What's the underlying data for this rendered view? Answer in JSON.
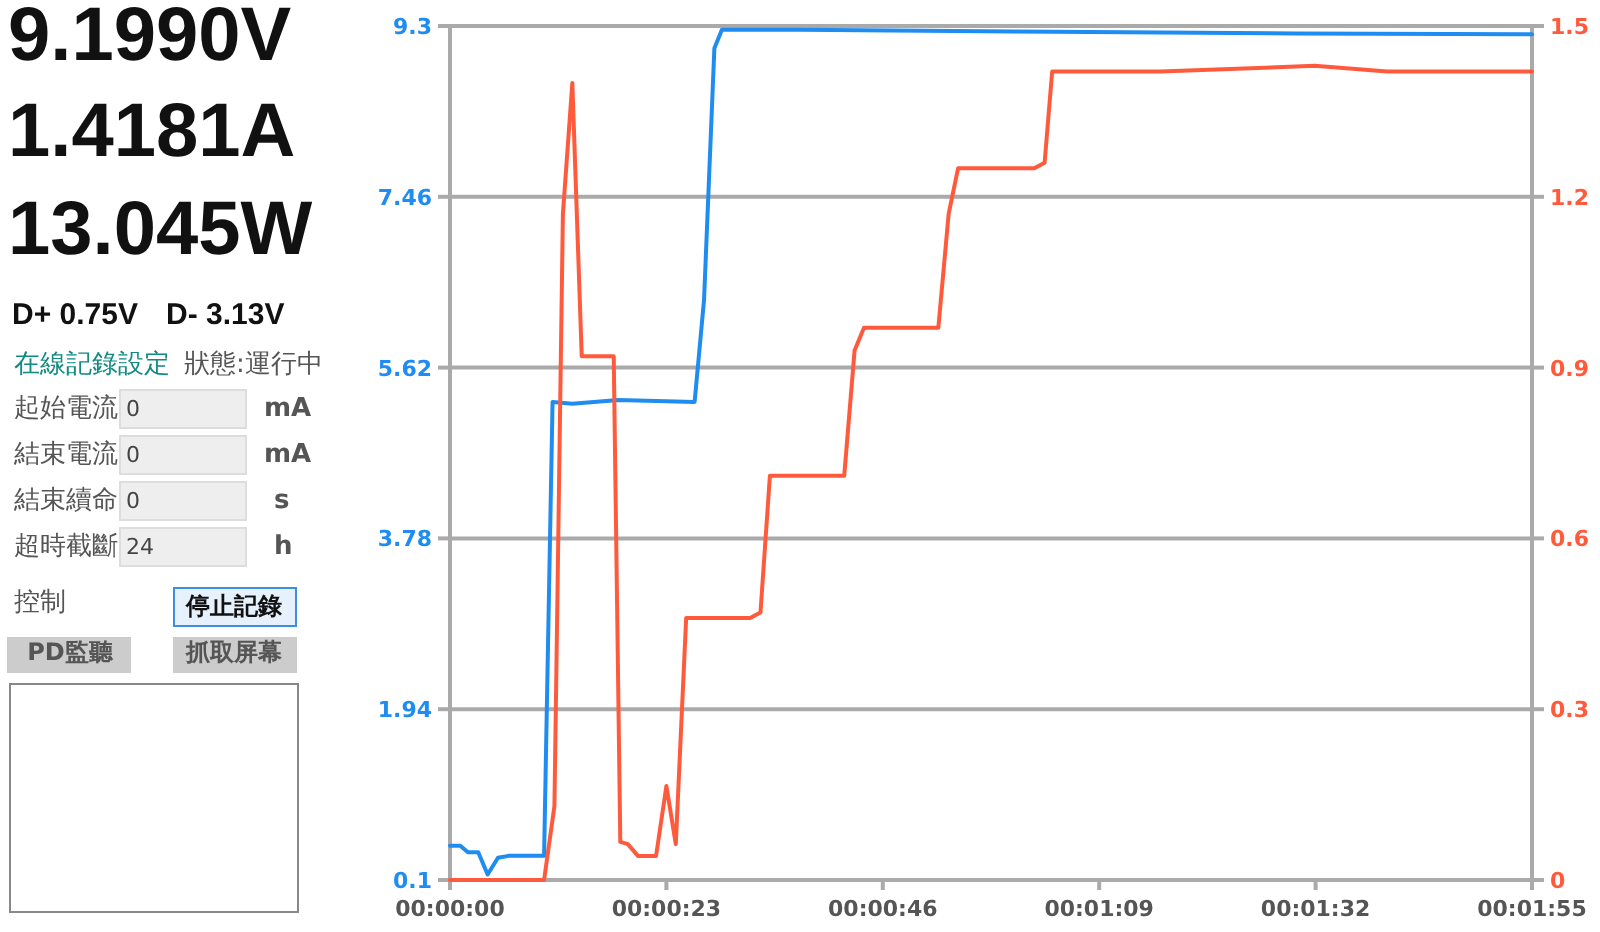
{
  "chart_data": {
    "type": "line",
    "grid": "y",
    "xlim": [
      0,
      115
    ],
    "xticks": [
      {
        "value": 0,
        "label": "00:00:00"
      },
      {
        "value": 23,
        "label": "00:00:23"
      },
      {
        "value": 46,
        "label": "00:00:46"
      },
      {
        "value": 69,
        "label": "00:01:09"
      },
      {
        "value": 92,
        "label": "00:01:32"
      },
      {
        "value": 115,
        "label": "00:01:55"
      }
    ],
    "ylim": [
      0.1,
      9.3
    ],
    "yticks": [
      0.1,
      1.94,
      3.78,
      5.62,
      7.46,
      9.3
    ],
    "y2lim": [
      0,
      1.5
    ],
    "y2ticks": [
      0,
      0.3,
      0.6,
      0.9,
      1.2,
      1.5
    ],
    "series": [
      {
        "color": "#1e8cf0",
        "axis": "y",
        "x": [
          0,
          1.1,
          1.9,
          3,
          4,
          5.1,
          6.2,
          10,
          10.9,
          13,
          17.9,
          26,
          27,
          28.1,
          28.9,
          37.2,
          60,
          90,
          115
        ],
        "values": [
          0.47,
          0.47,
          0.4,
          0.4,
          0.16,
          0.34,
          0.36,
          0.36,
          5.25,
          5.23,
          5.27,
          5.25,
          6.35,
          9.06,
          9.26,
          9.26,
          9.24,
          9.22,
          9.21
        ]
      },
      {
        "color": "#ff5a3c",
        "axis": "y2",
        "x": [
          0,
          10,
          11.1,
          12,
          13,
          14,
          17.4,
          18.1,
          18.9,
          20,
          21.9,
          23,
          24,
          25.1,
          26.6,
          31.9,
          33,
          34,
          41.9,
          43,
          44,
          51.9,
          53,
          54,
          62.1,
          63.2,
          64,
          75.5,
          91.9,
          99.6,
          111.7,
          115
        ],
        "values": [
          0,
          0,
          0.13,
          1.17,
          1.4,
          0.92,
          0.92,
          0.067,
          0.063,
          0.042,
          0.042,
          0.165,
          0.063,
          0.46,
          0.46,
          0.46,
          0.47,
          0.71,
          0.71,
          0.93,
          0.97,
          0.97,
          1.17,
          1.25,
          1.25,
          1.26,
          1.42,
          1.42,
          1.43,
          1.42,
          1.42,
          1.42
        ]
      }
    ],
    "annotations": [
      "9.1990V",
      "1.4181A",
      "13.045W",
      "D+ 0.75V",
      "D- 3.13V",
      "在線記錄設定",
      "狀態:運行中",
      "起始電流",
      "0",
      "mA",
      "結束電流",
      "0",
      "mA",
      "結束續命",
      "0",
      "s",
      "超時截斷",
      "24",
      "h",
      "控制",
      "停止記錄",
      "PD監聽",
      "抓取屏幕"
    ]
  }
}
